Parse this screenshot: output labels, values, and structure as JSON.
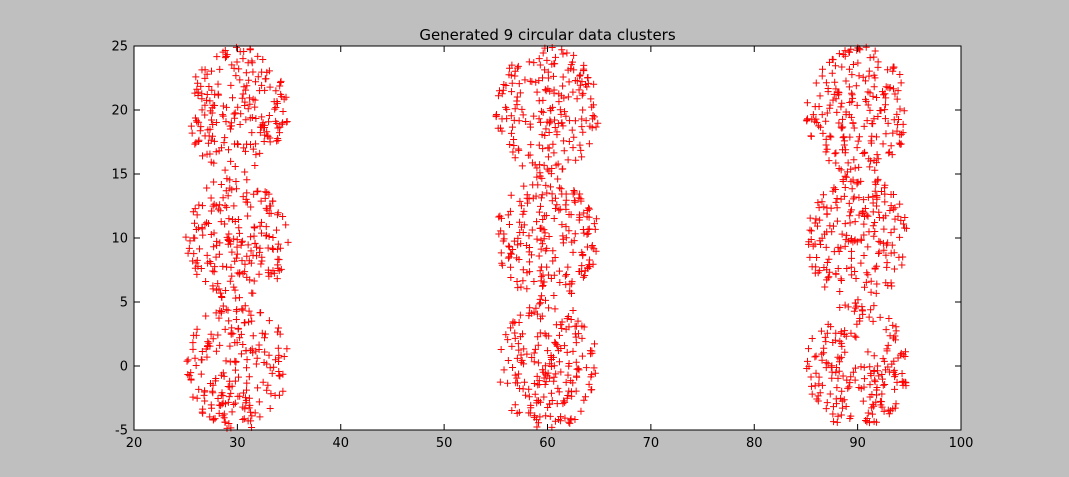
{
  "chart_data": {
    "type": "scatter",
    "title": "Generated 9 circular data clusters",
    "xlabel": "",
    "ylabel": "",
    "xlim": [
      20,
      100
    ],
    "ylim": [
      -5,
      25
    ],
    "xticks": [
      20,
      30,
      40,
      50,
      60,
      70,
      80,
      90,
      100
    ],
    "yticks": [
      -5,
      0,
      5,
      10,
      15,
      20,
      25
    ],
    "marker": "+",
    "marker_color": "#ff0000",
    "grid": false,
    "legend": "none",
    "cluster_radius": 5,
    "series": [
      {
        "center": [
          30,
          0
        ],
        "points": 200
      },
      {
        "center": [
          30,
          10
        ],
        "points": 200
      },
      {
        "center": [
          30,
          20
        ],
        "points": 200
      },
      {
        "center": [
          60,
          0
        ],
        "points": 200
      },
      {
        "center": [
          60,
          10
        ],
        "points": 200
      },
      {
        "center": [
          60,
          20
        ],
        "points": 200
      },
      {
        "center": [
          90,
          0
        ],
        "points": 200
      },
      {
        "center": [
          90,
          10
        ],
        "points": 200
      },
      {
        "center": [
          90,
          20
        ],
        "points": 200
      }
    ]
  },
  "colors": {
    "window_background": "#bfbfbf",
    "axes_background": "#ffffff",
    "axis_line": "#000000"
  }
}
